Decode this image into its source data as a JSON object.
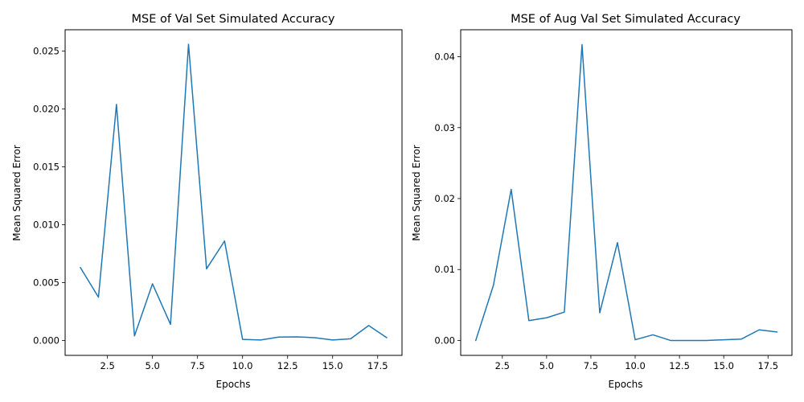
{
  "chart_data": [
    {
      "type": "line",
      "title": "MSE of Val Set Simulated Accuracy",
      "xlabel": "Epochs",
      "ylabel": "Mean Squared Error",
      "xlim": [
        0.15,
        18.85
      ],
      "ylim": [
        -0.00128,
        0.02685
      ],
      "xticks": [
        2.5,
        5.0,
        7.5,
        10.0,
        12.5,
        15.0,
        17.5
      ],
      "xtick_labels": [
        "2.5",
        "5.0",
        "7.5",
        "10.0",
        "12.5",
        "15.0",
        "17.5"
      ],
      "yticks": [
        0.0,
        0.005,
        0.01,
        0.015,
        0.02,
        0.025
      ],
      "ytick_labels": [
        "0.000",
        "0.005",
        "0.010",
        "0.015",
        "0.020",
        "0.025"
      ],
      "grid": false,
      "series": [
        {
          "color": "#1f77b4",
          "x": [
            1,
            2,
            3,
            4,
            5,
            6,
            7,
            8,
            9,
            10,
            11,
            12,
            13,
            14,
            15,
            16,
            17,
            18
          ],
          "y": [
            0.0063,
            0.00375,
            0.0204,
            0.0004,
            0.0049,
            0.0014,
            0.0256,
            0.0062,
            0.0086,
            0.0001,
            5e-05,
            0.0003,
            0.00032,
            0.00025,
            5e-05,
            0.00015,
            0.0013,
            0.00025
          ]
        }
      ]
    },
    {
      "type": "line",
      "title": "MSE of Aug Val Set Simulated Accuracy",
      "xlabel": "Epochs",
      "ylabel": "Mean Squared Error",
      "xlim": [
        0.15,
        18.85
      ],
      "ylim": [
        -0.0021,
        0.0438
      ],
      "xticks": [
        2.5,
        5.0,
        7.5,
        10.0,
        12.5,
        15.0,
        17.5
      ],
      "xtick_labels": [
        "2.5",
        "5.0",
        "7.5",
        "10.0",
        "12.5",
        "15.0",
        "17.5"
      ],
      "yticks": [
        0.0,
        0.01,
        0.02,
        0.03,
        0.04
      ],
      "ytick_labels": [
        "0.00",
        "0.01",
        "0.02",
        "0.03",
        "0.04"
      ],
      "grid": false,
      "series": [
        {
          "color": "#1f77b4",
          "x": [
            1,
            2,
            3,
            4,
            5,
            6,
            7,
            8,
            9,
            10,
            11,
            12,
            13,
            14,
            15,
            16,
            17,
            18
          ],
          "y": [
            0.0,
            0.0078,
            0.0213,
            0.0028,
            0.0032,
            0.004,
            0.0417,
            0.0039,
            0.0138,
            0.0001,
            0.0008,
            0.0,
            0.0,
            0.0,
            0.0001,
            0.0002,
            0.0015,
            0.0012
          ]
        }
      ]
    }
  ]
}
